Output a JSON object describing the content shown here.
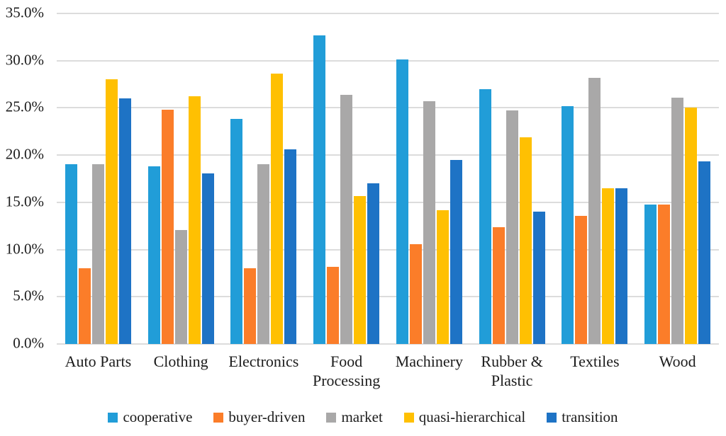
{
  "chart_data": {
    "type": "bar",
    "title": "",
    "xlabel": "",
    "ylabel": "",
    "ylim": [
      0,
      35
    ],
    "grid": true,
    "legend_position": "bottom",
    "y_ticks": [
      {
        "label": "35.0%",
        "value": 35
      },
      {
        "label": "30.0%",
        "value": 30
      },
      {
        "label": "25.0%",
        "value": 25
      },
      {
        "label": "20.0%",
        "value": 20
      },
      {
        "label": "15.0%",
        "value": 15
      },
      {
        "label": "10.0%",
        "value": 10
      },
      {
        "label": "5.0%",
        "value": 5
      },
      {
        "label": "0.0%",
        "value": 0
      }
    ],
    "categories": [
      "Auto Parts",
      "Clothing",
      "Electronics",
      "Food Processing",
      "Machinery",
      "Rubber & Plastic",
      "Textiles",
      "Wood"
    ],
    "series": [
      {
        "name": "cooperative",
        "color": "#219DD8",
        "values": [
          19.0,
          18.8,
          23.8,
          32.7,
          30.1,
          27.0,
          25.2,
          14.8
        ]
      },
      {
        "name": "buyer-driven",
        "color": "#FB7D29",
        "values": [
          8.0,
          24.8,
          8.0,
          8.2,
          10.6,
          12.4,
          13.6,
          14.8
        ]
      },
      {
        "name": "market",
        "color": "#A9A8A8",
        "values": [
          19.0,
          12.1,
          19.0,
          26.4,
          25.7,
          24.7,
          28.2,
          26.1
        ]
      },
      {
        "name": "quasi-hierarchical",
        "color": "#FFC002",
        "values": [
          28.0,
          26.2,
          28.6,
          15.7,
          14.2,
          21.9,
          16.5,
          25.0
        ]
      },
      {
        "name": "transition",
        "color": "#1E73C5",
        "values": [
          26.0,
          18.1,
          20.6,
          17.0,
          19.5,
          14.0,
          16.5,
          19.3
        ]
      }
    ],
    "gridline_color": "#dcdcdc",
    "text_color": "#1c1c1c"
  }
}
